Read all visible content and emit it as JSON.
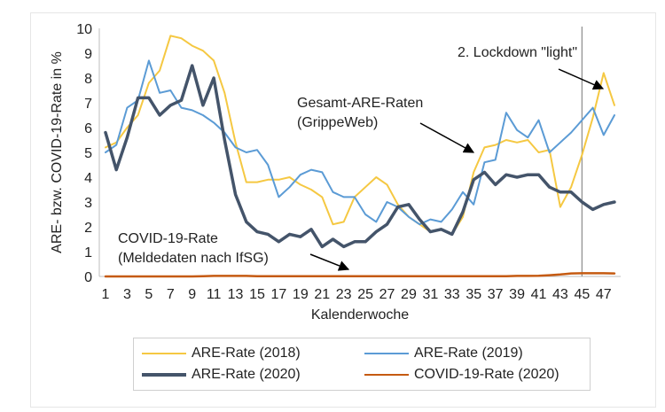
{
  "chart_data": {
    "type": "line",
    "xlabel": "Kalenderwoche",
    "ylabel": "ARE- bzw. COVID-19-Rate in %",
    "ylim": [
      0,
      10
    ],
    "yticks": [
      "0",
      "1",
      "2",
      "3",
      "4",
      "5",
      "6",
      "7",
      "8",
      "9",
      "10"
    ],
    "xticks": [
      "1",
      "3",
      "5",
      "7",
      "9",
      "11",
      "13",
      "15",
      "17",
      "19",
      "21",
      "23",
      "25",
      "27",
      "29",
      "31",
      "33",
      "35",
      "37",
      "39",
      "41",
      "43",
      "45",
      "47"
    ],
    "grid": false,
    "legend_position": "bottom",
    "x": [
      1,
      2,
      3,
      4,
      5,
      6,
      7,
      8,
      9,
      10,
      11,
      12,
      13,
      14,
      15,
      16,
      17,
      18,
      19,
      20,
      21,
      22,
      23,
      24,
      25,
      26,
      27,
      28,
      29,
      30,
      31,
      32,
      33,
      34,
      35,
      36,
      37,
      38,
      39,
      40,
      41,
      42,
      43,
      44,
      45,
      46,
      47,
      48
    ],
    "series": [
      {
        "name": "ARE-Rate (2018)",
        "color": "#F5C842",
        "width": 2,
        "values": [
          5.2,
          5.4,
          6.0,
          6.5,
          7.8,
          8.3,
          9.7,
          9.6,
          9.3,
          9.1,
          8.7,
          7.4,
          5.4,
          3.8,
          3.8,
          3.9,
          3.9,
          4.0,
          3.7,
          3.5,
          3.2,
          2.1,
          2.2,
          3.2,
          3.6,
          4.0,
          3.7,
          2.9,
          2.4,
          2.1,
          1.8,
          1.9,
          1.7,
          2.4,
          4.2,
          5.2,
          5.3,
          5.5,
          5.4,
          5.5,
          5.0,
          5.1,
          2.8,
          3.6,
          4.9,
          6.4,
          8.2,
          6.9
        ]
      },
      {
        "name": "ARE-Rate (2019)",
        "color": "#5B9BD5",
        "width": 2,
        "values": [
          5.0,
          5.3,
          6.8,
          7.1,
          8.7,
          7.4,
          7.5,
          6.8,
          6.7,
          6.5,
          6.2,
          5.8,
          5.2,
          5.0,
          5.1,
          4.5,
          3.2,
          3.6,
          4.1,
          4.3,
          4.2,
          3.4,
          3.2,
          3.2,
          2.5,
          2.2,
          3.0,
          2.8,
          2.4,
          2.1,
          2.3,
          2.2,
          2.7,
          3.4,
          2.9,
          4.6,
          4.7,
          6.6,
          5.9,
          5.6,
          6.3,
          5.0,
          5.4,
          5.8,
          6.3,
          6.8,
          5.7,
          6.5
        ]
      },
      {
        "name": "ARE-Rate (2020)",
        "color": "#44546A",
        "width": 3.5,
        "values": [
          5.8,
          4.3,
          5.6,
          7.2,
          7.2,
          6.5,
          6.9,
          7.1,
          8.5,
          6.9,
          8.0,
          5.5,
          3.3,
          2.2,
          1.8,
          1.7,
          1.4,
          1.7,
          1.6,
          1.9,
          1.2,
          1.5,
          1.2,
          1.4,
          1.4,
          1.8,
          2.1,
          2.8,
          2.9,
          2.3,
          1.8,
          1.9,
          1.7,
          2.6,
          3.9,
          4.2,
          3.7,
          4.1,
          4.0,
          4.1,
          4.1,
          3.6,
          3.4,
          3.4,
          3.0,
          2.7,
          2.9,
          3.0
        ]
      },
      {
        "name": "COVID-19-Rate (2020)",
        "color": "#C55A11",
        "width": 2.5,
        "values": [
          0,
          0,
          0,
          0,
          0,
          0,
          0,
          0,
          0,
          0.01,
          0.02,
          0.02,
          0.02,
          0.02,
          0.01,
          0.01,
          0.01,
          0.01,
          0.01,
          0.01,
          0.01,
          0.01,
          0.01,
          0.01,
          0.01,
          0.01,
          0.01,
          0.01,
          0.01,
          0.01,
          0.01,
          0.01,
          0.01,
          0.01,
          0.01,
          0.01,
          0.01,
          0.01,
          0.02,
          0.02,
          0.03,
          0.05,
          0.08,
          0.12,
          0.13,
          0.13,
          0.13,
          0.12
        ]
      }
    ],
    "annotations": [
      {
        "text": "2. Lockdown \"light\"",
        "lines": [
          "2. Lockdown \"light\""
        ]
      },
      {
        "text": "Gesamt-ARE-Raten (GrippeWeb)",
        "lines": [
          "Gesamt-ARE-Raten",
          "(GrippeWeb)"
        ]
      },
      {
        "text": "COVID-19-Rate (Meldedaten nach IfSG)",
        "lines": [
          "COVID-19-Rate",
          "(Meldedaten nach IfSG)"
        ]
      }
    ],
    "vline_week": 45
  }
}
